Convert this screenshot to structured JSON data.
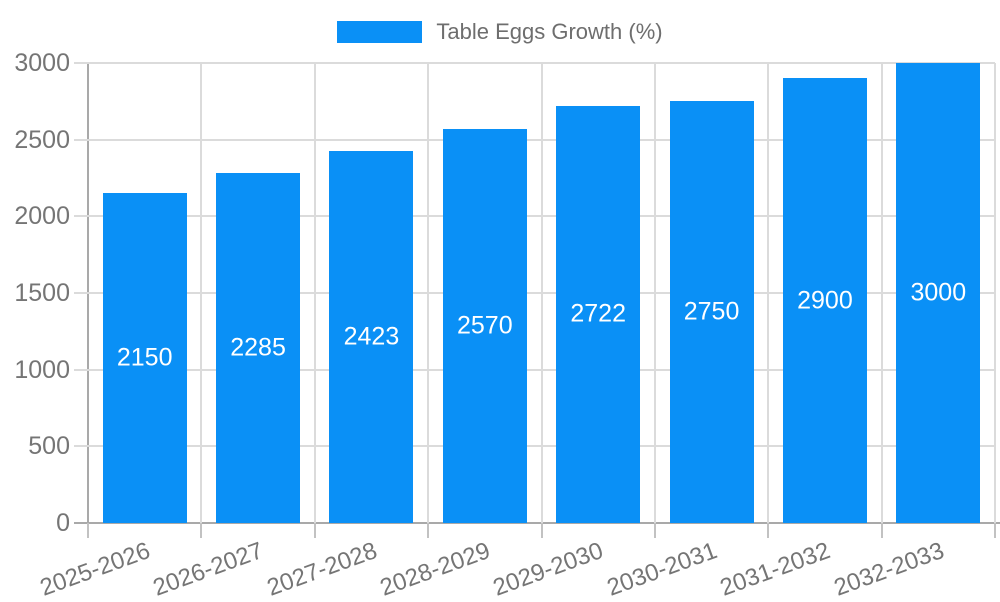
{
  "chart_data": {
    "type": "bar",
    "title": "Table Eggs Growth (%)",
    "categories": [
      "2025-2026",
      "2026-2027",
      "2027-2028",
      "2028-2029",
      "2029-2030",
      "2030-2031",
      "2031-2032",
      "2032-2033"
    ],
    "values": [
      2150,
      2285,
      2423,
      2570,
      2722,
      2750,
      2900,
      3000
    ],
    "xlabel": "",
    "ylabel": "",
    "ylim": [
      0,
      3000
    ],
    "yticks": [
      0,
      500,
      1000,
      1500,
      2000,
      2500,
      3000
    ],
    "grid": true,
    "value_labels": "inside-center",
    "legend_position": "top"
  },
  "legend": {
    "label": "Table Eggs Growth (%)"
  },
  "style": {
    "bar_color": "#0A90F6",
    "grid_color": "#DBDBDB",
    "axis_color": "#A9A9A9",
    "xtick_color": "#C2C2C2",
    "tick_label_color": "#757575",
    "legend_text_color": "#6E6E6E",
    "value_label_color": "#FFFFFF",
    "background_color": "#FFFFFF"
  }
}
